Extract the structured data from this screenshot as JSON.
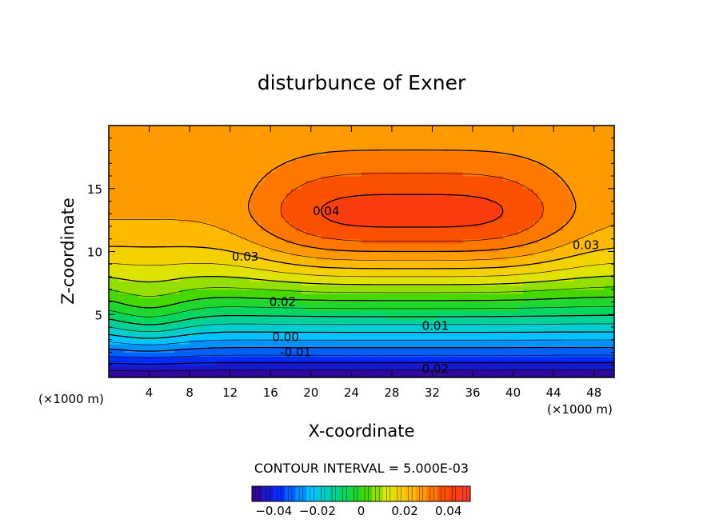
{
  "chart_data": {
    "type": "contour",
    "title": "disturbunce of Exner",
    "xlabel": "X-coordinate",
    "ylabel": "Z-coordinate",
    "x_unit_left": "(×1000 m)",
    "x_unit_right": "(×1000 m)",
    "xlim": [
      0,
      50
    ],
    "ylim": [
      0,
      20
    ],
    "xticks": [
      4,
      8,
      12,
      16,
      20,
      24,
      28,
      32,
      36,
      40,
      44,
      48
    ],
    "xtick_labels": [
      "4",
      "8",
      "12",
      "16",
      "20",
      "24",
      "28",
      "32",
      "36",
      "40",
      "44",
      "48"
    ],
    "yticks": [
      5,
      10,
      15
    ],
    "ytick_labels": [
      "5",
      "10",
      "15"
    ],
    "contour_interval_text": "CONTOUR INTERVAL = 5.000E-03",
    "contour_interval": 0.005,
    "value_range": [
      -0.05,
      0.05
    ],
    "field_max": {
      "value": 0.0425,
      "x": 30,
      "z": 12.7
    },
    "contour_labels": [
      {
        "text": "0.04",
        "x": 21.5,
        "z": 13.2
      },
      {
        "text": "0.03",
        "x": 13.5,
        "z": 9.6
      },
      {
        "text": "0.03",
        "x": 47.2,
        "z": 10.5
      },
      {
        "text": "0.02",
        "x": 17.2,
        "z": 6.0
      },
      {
        "text": "0.01",
        "x": 32.3,
        "z": 4.1
      },
      {
        "text": "0.00",
        "x": 17.5,
        "z": 3.2
      },
      {
        "text": "-0.01",
        "x": 18.5,
        "z": 2.0
      },
      {
        "text": "0.02",
        "x": 32.3,
        "z": 0.7
      }
    ],
    "colorbar": {
      "ticks": [
        -0.04,
        -0.02,
        0,
        0.02,
        0.04
      ],
      "tick_labels": [
        "−0.04",
        "−0.02",
        "0",
        "0.02",
        "0.04"
      ]
    },
    "grid": false
  }
}
